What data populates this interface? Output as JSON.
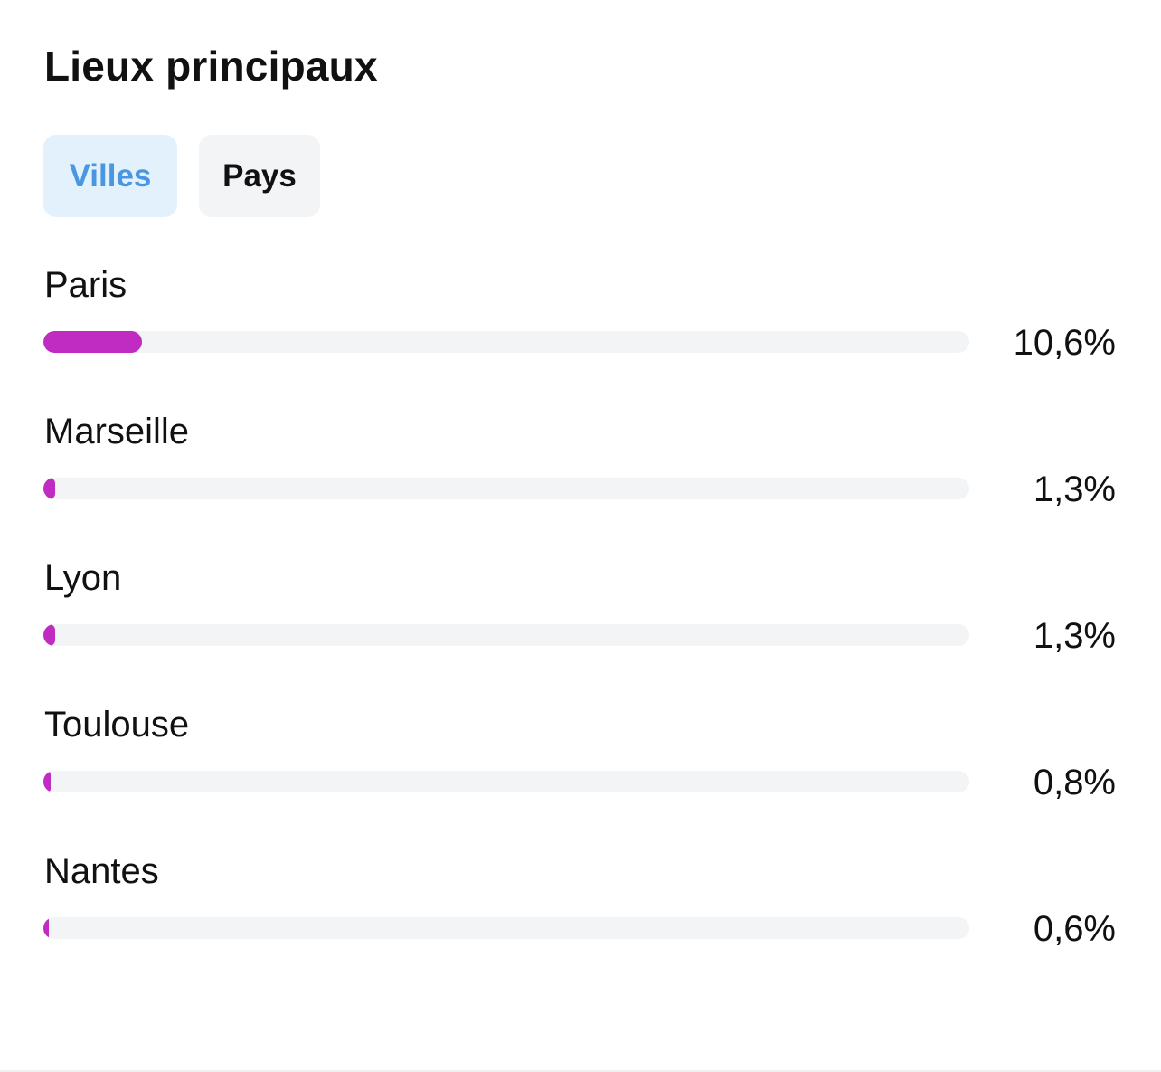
{
  "header": {
    "title": "Lieux principaux"
  },
  "tabs": [
    {
      "label": "Villes",
      "active": true,
      "color": "#4a97e1"
    },
    {
      "label": "Pays",
      "active": false,
      "color": "#111111"
    }
  ],
  "accent_color": "#c02bc1",
  "locations": [
    {
      "name": "Paris",
      "percent_label": "10,6%",
      "value": 10.6
    },
    {
      "name": "Marseille",
      "percent_label": "1,3%",
      "value": 1.3
    },
    {
      "name": "Lyon",
      "percent_label": "1,3%",
      "value": 1.3
    },
    {
      "name": "Toulouse",
      "percent_label": "0,8%",
      "value": 0.8
    },
    {
      "name": "Nantes",
      "percent_label": "0,6%",
      "value": 0.6
    }
  ]
}
